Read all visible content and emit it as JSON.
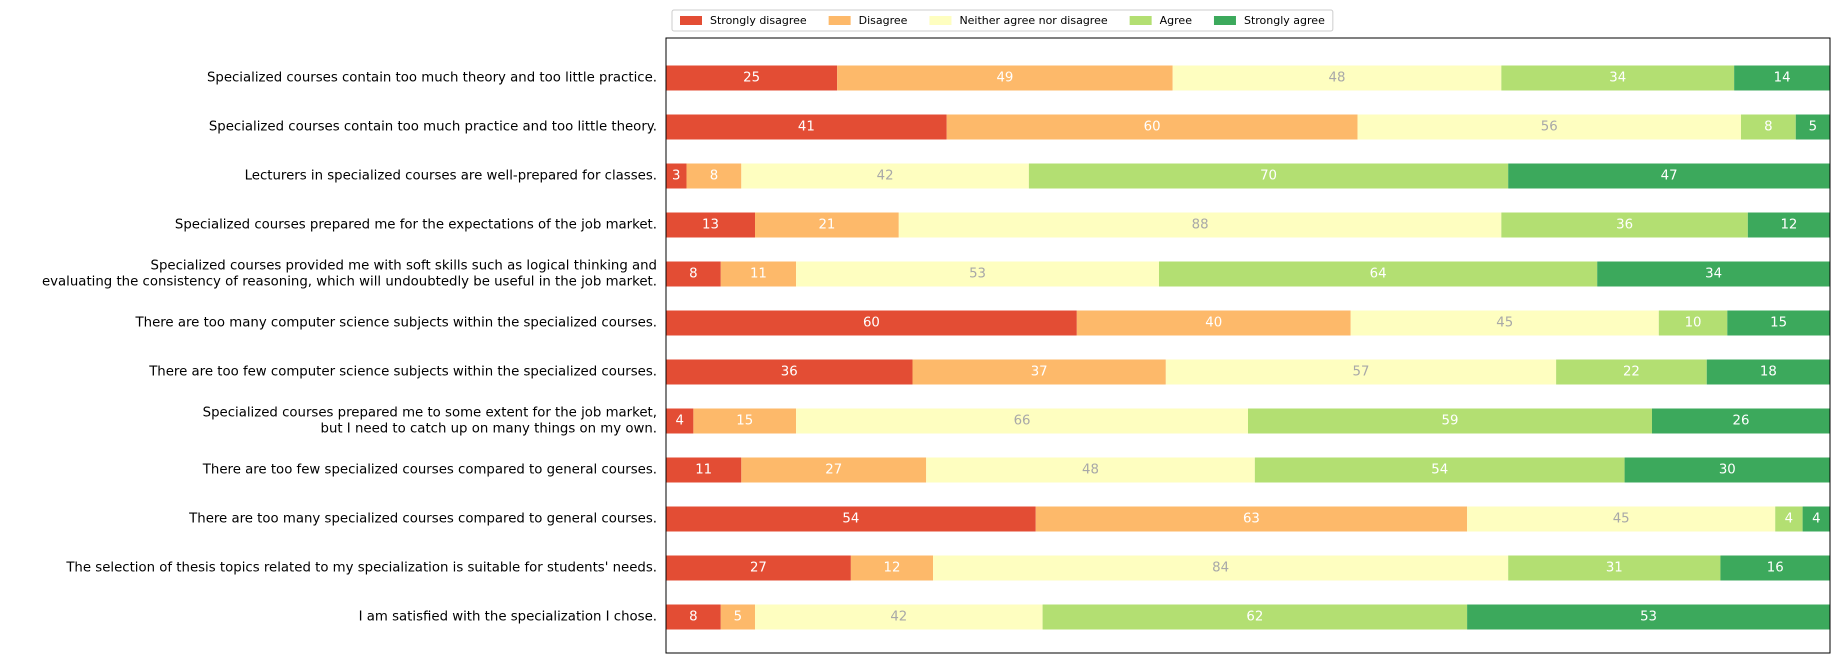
{
  "chart_data": {
    "type": "bar",
    "orientation": "horizontal",
    "stacked": true,
    "title": "",
    "xlabel": "",
    "ylabel": "",
    "xlim": [
      0,
      170
    ],
    "grid": false,
    "legend_position": "top",
    "categories": [
      [
        "Specialized courses contain too much theory and too little practice."
      ],
      [
        "Specialized courses contain too much practice and too little theory."
      ],
      [
        "Lecturers in specialized courses are well-prepared for classes."
      ],
      [
        "Specialized courses prepared me for the expectations of the job market."
      ],
      [
        "Specialized courses provided me with soft skills such as logical thinking and",
        "evaluating the consistency of reasoning, which will undoubtedly be useful in the job market."
      ],
      [
        "There are too many computer science subjects within the specialized courses."
      ],
      [
        "There are too few computer science subjects within the specialized courses."
      ],
      [
        "Specialized courses prepared me to some extent for the job market,",
        "but I need to catch up on many things on my own."
      ],
      [
        "There are too few specialized courses compared to general courses."
      ],
      [
        "There are too many specialized courses compared to general courses."
      ],
      [
        "The selection of thesis topics related to my specialization is suitable for students' needs."
      ],
      [
        "I am satisfied with the specialization I chose."
      ]
    ],
    "series": [
      {
        "name": "Strongly disagree",
        "color": "#e34d34",
        "label_color": "#ffffff",
        "values": [
          25,
          41,
          3,
          13,
          8,
          60,
          36,
          4,
          11,
          54,
          27,
          8
        ]
      },
      {
        "name": "Disagree",
        "color": "#fdb96a",
        "label_color": "#ffffff",
        "values": [
          49,
          60,
          8,
          21,
          11,
          40,
          37,
          15,
          27,
          63,
          12,
          5
        ]
      },
      {
        "name": "Neither agree nor disagree",
        "color": "#fefec0",
        "label_color": "#a8a8a8",
        "values": [
          48,
          56,
          42,
          88,
          53,
          45,
          57,
          66,
          48,
          45,
          84,
          42
        ]
      },
      {
        "name": "Agree",
        "color": "#b3df72",
        "label_color": "#ffffff",
        "values": [
          34,
          8,
          70,
          36,
          64,
          10,
          22,
          59,
          54,
          4,
          31,
          62
        ]
      },
      {
        "name": "Strongly agree",
        "color": "#3ca95c",
        "label_color": "#ffffff",
        "values": [
          14,
          5,
          47,
          12,
          34,
          15,
          18,
          26,
          30,
          4,
          16,
          53
        ]
      }
    ]
  }
}
